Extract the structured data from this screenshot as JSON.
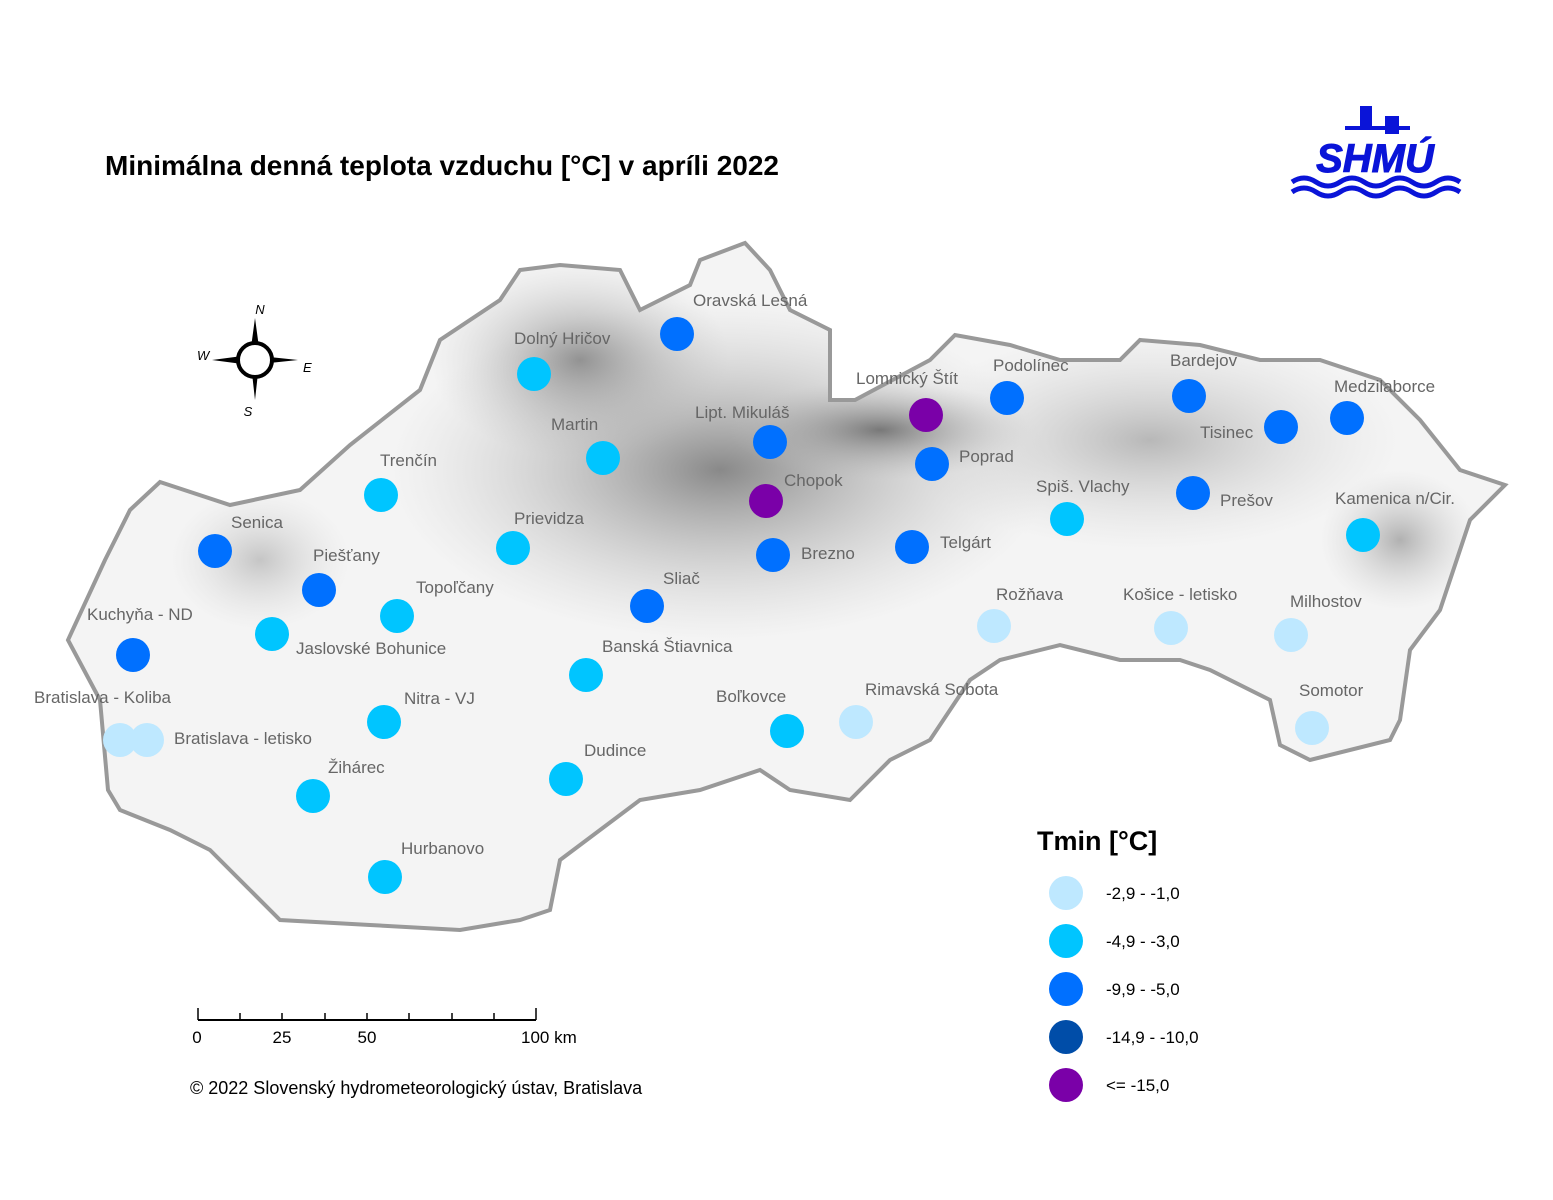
{
  "title": "Minimálna denná teplota vzduchu [°C] v apríli 2022",
  "logo": "SHMÚ",
  "compass": {
    "n": "N",
    "e": "E",
    "s": "S",
    "w": "W"
  },
  "stations": [
    {
      "name": "Oravská Lesná",
      "color": "#0070ff"
    },
    {
      "name": "Dolný Hričov",
      "color": "#00c5ff"
    },
    {
      "name": "Martin",
      "color": "#00c5ff"
    },
    {
      "name": "Lipt. Mikuláš",
      "color": "#0070ff"
    },
    {
      "name": "Chopok",
      "color": "#7a00a8"
    },
    {
      "name": "Lomnický Štít",
      "color": "#7a00a8"
    },
    {
      "name": "Podolínec",
      "color": "#0070ff"
    },
    {
      "name": "Poprad",
      "color": "#0070ff"
    },
    {
      "name": "Bardejov",
      "color": "#0070ff"
    },
    {
      "name": "Tisinec",
      "color": "#0070ff"
    },
    {
      "name": "Medzilaborce",
      "color": "#0070ff"
    },
    {
      "name": "Prešov",
      "color": "#0070ff"
    },
    {
      "name": "Spiš. Vlachy",
      "color": "#00c5ff"
    },
    {
      "name": "Kamenica n/Cir.",
      "color": "#00c5ff"
    },
    {
      "name": "Telgárt",
      "color": "#0070ff"
    },
    {
      "name": "Brezno",
      "color": "#0070ff"
    },
    {
      "name": "Sliač",
      "color": "#0070ff"
    },
    {
      "name": "Rožňava",
      "color": "#bee8ff"
    },
    {
      "name": "Košice - letisko",
      "color": "#bee8ff"
    },
    {
      "name": "Milhostov",
      "color": "#bee8ff"
    },
    {
      "name": "Somotor",
      "color": "#bee8ff"
    },
    {
      "name": "Rimavská Sobota",
      "color": "#bee8ff"
    },
    {
      "name": "Boľkovce",
      "color": "#00c5ff"
    },
    {
      "name": "Banská Štiavnica",
      "color": "#00c5ff"
    },
    {
      "name": "Dudince",
      "color": "#00c5ff"
    },
    {
      "name": "Prievidza",
      "color": "#00c5ff"
    },
    {
      "name": "Trenčín",
      "color": "#00c5ff"
    },
    {
      "name": "Senica",
      "color": "#0070ff"
    },
    {
      "name": "Piešťany",
      "color": "#0070ff"
    },
    {
      "name": "Topoľčany",
      "color": "#00c5ff"
    },
    {
      "name": "Jaslovské Bohunice",
      "color": "#00c5ff"
    },
    {
      "name": "Kuchyňa - ND",
      "color": "#0070ff"
    },
    {
      "name": "Bratislava - Koliba",
      "color": "#bee8ff"
    },
    {
      "name": "Bratislava - letisko",
      "color": "#bee8ff"
    },
    {
      "name": "Nitra - VJ",
      "color": "#00c5ff"
    },
    {
      "name": "Žihárec",
      "color": "#00c5ff"
    },
    {
      "name": "Hurbanovo",
      "color": "#00c5ff"
    }
  ],
  "legend": {
    "title": "Tmin [°C]",
    "items": [
      {
        "label": "-2,9 - -1,0",
        "color": "#bee8ff"
      },
      {
        "label": "-4,9 - -3,0",
        "color": "#00c5ff"
      },
      {
        "label": "-9,9 - -5,0",
        "color": "#0070ff"
      },
      {
        "label": "-14,9 - -10,0",
        "color": "#004da8"
      },
      {
        "label": "<= -15,0",
        "color": "#7a00a8"
      }
    ]
  },
  "scalebar": [
    "0",
    "25",
    "50",
    "100 km"
  ],
  "copyright": "© 2022 Slovenský hydrometeorologický ústav, Bratislava"
}
